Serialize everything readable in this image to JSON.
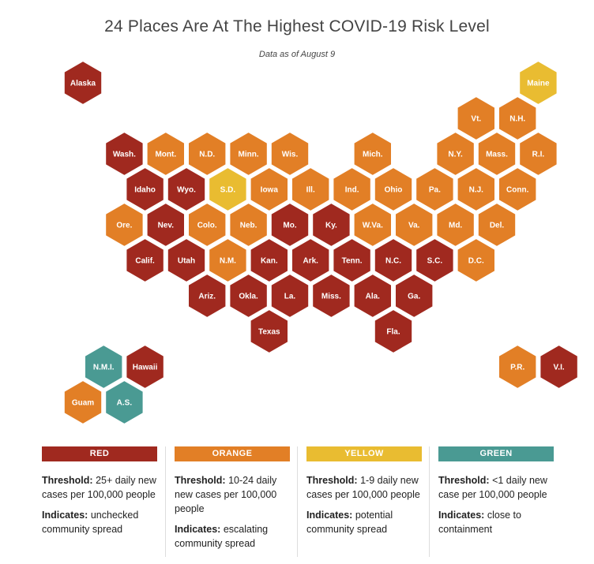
{
  "header": {
    "title": "24 Places Are At The Highest COVID-19 Risk Level",
    "subtitle": "Data as of August 9"
  },
  "colors": {
    "red": "#a0291f",
    "orange": "#e27f26",
    "yellow": "#e9bc31",
    "green": "#4a9a93"
  },
  "chart_data": {
    "type": "hex-tile-map",
    "title": "24 Places Are At The Highest COVID-19 Risk Level",
    "subtitle": "Data as of August 9",
    "tiles": [
      {
        "label": "Alaska",
        "col": 0,
        "row": 0,
        "level": "red"
      },
      {
        "label": "Maine",
        "col": 11,
        "row": 0,
        "level": "yellow"
      },
      {
        "label": "Vt.",
        "col": 9.5,
        "row": 1,
        "level": "orange"
      },
      {
        "label": "N.H.",
        "col": 10.5,
        "row": 1,
        "level": "orange"
      },
      {
        "label": "Wash.",
        "col": 1,
        "row": 2,
        "level": "red"
      },
      {
        "label": "Mont.",
        "col": 2,
        "row": 2,
        "level": "orange"
      },
      {
        "label": "N.D.",
        "col": 3,
        "row": 2,
        "level": "orange"
      },
      {
        "label": "Minn.",
        "col": 4,
        "row": 2,
        "level": "orange"
      },
      {
        "label": "Wis.",
        "col": 5,
        "row": 2,
        "level": "orange"
      },
      {
        "label": "Mich.",
        "col": 7,
        "row": 2,
        "level": "orange"
      },
      {
        "label": "N.Y.",
        "col": 9,
        "row": 2,
        "level": "orange"
      },
      {
        "label": "Mass.",
        "col": 10,
        "row": 2,
        "level": "orange"
      },
      {
        "label": "R.I.",
        "col": 11,
        "row": 2,
        "level": "orange"
      },
      {
        "label": "Idaho",
        "col": 1.5,
        "row": 3,
        "level": "red"
      },
      {
        "label": "Wyo.",
        "col": 2.5,
        "row": 3,
        "level": "red"
      },
      {
        "label": "S.D.",
        "col": 3.5,
        "row": 3,
        "level": "yellow"
      },
      {
        "label": "Iowa",
        "col": 4.5,
        "row": 3,
        "level": "orange"
      },
      {
        "label": "Ill.",
        "col": 5.5,
        "row": 3,
        "level": "orange"
      },
      {
        "label": "Ind.",
        "col": 6.5,
        "row": 3,
        "level": "orange"
      },
      {
        "label": "Ohio",
        "col": 7.5,
        "row": 3,
        "level": "orange"
      },
      {
        "label": "Pa.",
        "col": 8.5,
        "row": 3,
        "level": "orange"
      },
      {
        "label": "N.J.",
        "col": 9.5,
        "row": 3,
        "level": "orange"
      },
      {
        "label": "Conn.",
        "col": 10.5,
        "row": 3,
        "level": "orange"
      },
      {
        "label": "Ore.",
        "col": 1,
        "row": 4,
        "level": "orange"
      },
      {
        "label": "Nev.",
        "col": 2,
        "row": 4,
        "level": "red"
      },
      {
        "label": "Colo.",
        "col": 3,
        "row": 4,
        "level": "orange"
      },
      {
        "label": "Neb.",
        "col": 4,
        "row": 4,
        "level": "orange"
      },
      {
        "label": "Mo.",
        "col": 5,
        "row": 4,
        "level": "red"
      },
      {
        "label": "Ky.",
        "col": 6,
        "row": 4,
        "level": "red"
      },
      {
        "label": "W.Va.",
        "col": 7,
        "row": 4,
        "level": "orange"
      },
      {
        "label": "Va.",
        "col": 8,
        "row": 4,
        "level": "orange"
      },
      {
        "label": "Md.",
        "col": 9,
        "row": 4,
        "level": "orange"
      },
      {
        "label": "Del.",
        "col": 10,
        "row": 4,
        "level": "orange"
      },
      {
        "label": "Calif.",
        "col": 1.5,
        "row": 5,
        "level": "red"
      },
      {
        "label": "Utah",
        "col": 2.5,
        "row": 5,
        "level": "red"
      },
      {
        "label": "N.M.",
        "col": 3.5,
        "row": 5,
        "level": "orange"
      },
      {
        "label": "Kan.",
        "col": 4.5,
        "row": 5,
        "level": "red"
      },
      {
        "label": "Ark.",
        "col": 5.5,
        "row": 5,
        "level": "red"
      },
      {
        "label": "Tenn.",
        "col": 6.5,
        "row": 5,
        "level": "red"
      },
      {
        "label": "N.C.",
        "col": 7.5,
        "row": 5,
        "level": "red"
      },
      {
        "label": "S.C.",
        "col": 8.5,
        "row": 5,
        "level": "red"
      },
      {
        "label": "D.C.",
        "col": 9.5,
        "row": 5,
        "level": "orange"
      },
      {
        "label": "Ariz.",
        "col": 3,
        "row": 6,
        "level": "red"
      },
      {
        "label": "Okla.",
        "col": 4,
        "row": 6,
        "level": "red"
      },
      {
        "label": "La.",
        "col": 5,
        "row": 6,
        "level": "red"
      },
      {
        "label": "Miss.",
        "col": 6,
        "row": 6,
        "level": "red"
      },
      {
        "label": "Ala.",
        "col": 7,
        "row": 6,
        "level": "red"
      },
      {
        "label": "Ga.",
        "col": 8,
        "row": 6,
        "level": "red"
      },
      {
        "label": "Texas",
        "col": 4.5,
        "row": 7,
        "level": "red"
      },
      {
        "label": "Fla.",
        "col": 7.5,
        "row": 7,
        "level": "red"
      },
      {
        "label": "N.M.I.",
        "col": 0.5,
        "row": 8,
        "level": "green"
      },
      {
        "label": "Hawaii",
        "col": 1.5,
        "row": 8,
        "level": "red"
      },
      {
        "label": "Guam",
        "col": 0,
        "row": 9,
        "level": "orange"
      },
      {
        "label": "A.S.",
        "col": 1,
        "row": 9,
        "level": "green"
      },
      {
        "label": "P.R.",
        "col": 10.5,
        "row": 8,
        "level": "orange"
      },
      {
        "label": "V.I.",
        "col": 11.5,
        "row": 8,
        "level": "red"
      }
    ]
  },
  "legend": [
    {
      "key": "red",
      "label": "RED",
      "threshold_label": "Threshold:",
      "threshold": "25+ daily new cases per 100,000 people",
      "indicates_label": "Indicates:",
      "indicates": "unchecked community spread"
    },
    {
      "key": "orange",
      "label": "ORANGE",
      "threshold_label": "Threshold:",
      "threshold": "10-24 daily new cases per 100,000 people",
      "indicates_label": "Indicates:",
      "indicates": "escalating community spread"
    },
    {
      "key": "yellow",
      "label": "YELLOW",
      "threshold_label": "Threshold:",
      "threshold": "1-9 daily new cases per 100,000 people",
      "indicates_label": "Indicates:",
      "indicates": "potential community spread"
    },
    {
      "key": "green",
      "label": "GREEN",
      "threshold_label": "Threshold:",
      "threshold": "<1 daily new case per 100,000 people",
      "indicates_label": "Indicates:",
      "indicates": "close to containment"
    }
  ]
}
